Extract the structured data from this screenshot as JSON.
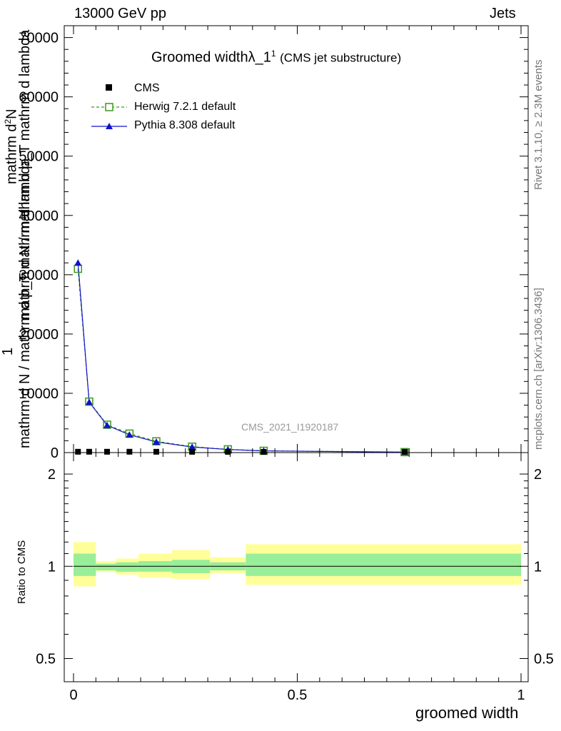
{
  "header": {
    "left": "13000 GeV pp",
    "right": "Jets"
  },
  "title": {
    "main": "Groomed width",
    "lambda": "λ_1",
    "sup": "1",
    "sub": "(CMS jet substructure)"
  },
  "side_labels": {
    "rivet": "Rivet 3.1.10, ≥ 2.3M events",
    "site": "mcplots.cern.ch [arXiv:1306.3436]"
  },
  "watermark": "CMS_2021_I1920187",
  "y_label_lines": [
    "mathrm d N / mathrm d p_T mathrm d lambda",
    "mathrm d N / mathrm d p_T mathrm d lambda"
  ],
  "y_label_top": "mathrm d",
  "y_label_sup": "2",
  "y_label_N": "N",
  "y_label_one": "1",
  "ratio_ylabel": "Ratio to CMS",
  "xlabel": "groomed width",
  "legend": [
    {
      "name": "CMS"
    },
    {
      "name": "Herwig 7.2.1 default"
    },
    {
      "name": "Pythia 8.308 default"
    }
  ],
  "colors": {
    "cms": "#000000",
    "herwig": "#3a9a1a",
    "pythia": "#1010cc",
    "band_inner": "#99ee99",
    "band_outer": "#ffff99"
  },
  "chart_data": [
    {
      "type": "line",
      "xlim": [
        0,
        1
      ],
      "ylim": [
        0,
        72000
      ],
      "x_ticks": [
        0,
        0.5,
        1
      ],
      "x_tick_labels": [
        "0",
        "0.5",
        "1"
      ],
      "y_ticks": [
        0,
        10000,
        20000,
        30000,
        40000,
        50000,
        60000,
        70000
      ],
      "y_tick_labels": [
        "0",
        "10000",
        "20000",
        "30000",
        "40000",
        "50000",
        "60000",
        "70000"
      ],
      "series": [
        {
          "name": "CMS",
          "x": [
            0.01,
            0.035,
            0.075,
            0.125,
            0.185,
            0.265,
            0.345,
            0.425,
            0.74
          ],
          "y": [
            20,
            25,
            22,
            24,
            18,
            12,
            8,
            5,
            2
          ]
        },
        {
          "name": "Herwig 7.2.1 default",
          "x": [
            0.01,
            0.035,
            0.075,
            0.125,
            0.185,
            0.265,
            0.345,
            0.425,
            0.74
          ],
          "y": [
            31000,
            8600,
            4700,
            3200,
            1900,
            1000,
            550,
            300,
            80
          ]
        },
        {
          "name": "Pythia 8.308 default",
          "x": [
            0.01,
            0.035,
            0.075,
            0.125,
            0.185,
            0.265,
            0.345,
            0.425,
            0.74
          ],
          "y": [
            32000,
            8500,
            4600,
            3000,
            1800,
            950,
            520,
            290,
            75
          ]
        }
      ]
    },
    {
      "type": "area",
      "ylabel": "Ratio to CMS",
      "ylim": [
        0.42,
        2.35
      ],
      "y_ticks": [
        0.5,
        1,
        2
      ],
      "y_tick_labels": [
        "0.5",
        "1",
        "2"
      ],
      "bins": [
        {
          "x": [
            0.0,
            0.05
          ],
          "inner": [
            0.93,
            1.1
          ],
          "outer": [
            0.86,
            1.2
          ]
        },
        {
          "x": [
            0.05,
            0.095
          ],
          "inner": [
            0.97,
            1.02
          ],
          "outer": [
            0.96,
            1.04
          ]
        },
        {
          "x": [
            0.095,
            0.145
          ],
          "inner": [
            0.96,
            1.03
          ],
          "outer": [
            0.94,
            1.06
          ]
        },
        {
          "x": [
            0.145,
            0.22
          ],
          "inner": [
            0.96,
            1.04
          ],
          "outer": [
            0.92,
            1.1
          ]
        },
        {
          "x": [
            0.22,
            0.305
          ],
          "inner": [
            0.95,
            1.05
          ],
          "outer": [
            0.91,
            1.13
          ]
        },
        {
          "x": [
            0.305,
            0.385
          ],
          "inner": [
            0.97,
            1.03
          ],
          "outer": [
            0.95,
            1.07
          ]
        },
        {
          "x": [
            0.385,
            1.0
          ],
          "inner": [
            0.93,
            1.1
          ],
          "outer": [
            0.87,
            1.18
          ]
        }
      ],
      "reference": 1
    }
  ]
}
